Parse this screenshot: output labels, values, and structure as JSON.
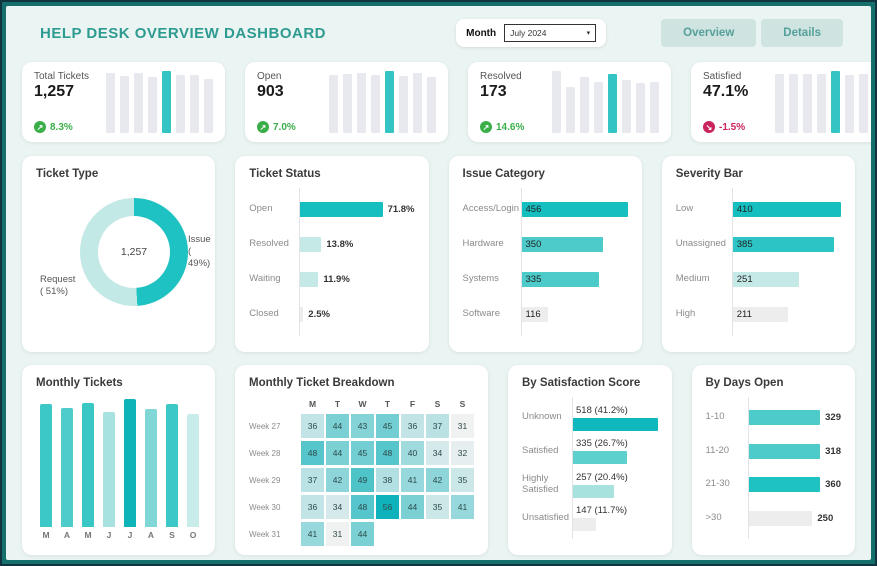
{
  "header": {
    "title": "HELP DESK OVERVIEW DASHBOARD",
    "month_label": "Month",
    "month_value": "July 2024",
    "buttons": {
      "overview": "Overview",
      "details": "Details"
    }
  },
  "colors": {
    "accent_dark": "#16bfbf",
    "accent_mid": "#4ccbca",
    "accent_light": "#c5e9e7",
    "neutral_bar": "#ededed",
    "positive": "#3aae49",
    "negative": "#c9245d",
    "title_teal": "#2d9b90"
  },
  "kpis": [
    {
      "label": "Total Tickets",
      "value": "1,257",
      "delta": "8.3%",
      "direction": "up",
      "spark": [
        0.96,
        0.92,
        0.97,
        0.91,
        1.0,
        0.93,
        0.94,
        0.87
      ],
      "highlight_index": 4
    },
    {
      "label": "Open",
      "value": "903",
      "delta": "7.0%",
      "direction": "up",
      "spark": [
        0.93,
        0.95,
        0.97,
        0.94,
        1.0,
        0.92,
        0.96,
        0.9
      ],
      "highlight_index": 4
    },
    {
      "label": "Resolved",
      "value": "173",
      "delta": "14.6%",
      "direction": "up",
      "spark": [
        1.0,
        0.75,
        0.9,
        0.82,
        0.95,
        0.85,
        0.8,
        0.83
      ],
      "highlight_index": 4
    },
    {
      "label": "Satisfied",
      "value": "47.1%",
      "delta": "-1.5%",
      "direction": "down",
      "spark": [
        0.95,
        0.95,
        0.95,
        0.95,
        1.0,
        0.93,
        0.95,
        0.92
      ],
      "highlight_index": 4
    }
  ],
  "chart_data": [
    {
      "id": "ticket-type",
      "type": "pie",
      "title": "Ticket Type",
      "center_label": "1,257",
      "slices": [
        {
          "label": "Issue",
          "pct": 49,
          "pct_label": "( 49%)",
          "color": "#1fc2c2"
        },
        {
          "label": "Request",
          "pct": 51,
          "pct_label": "( 51%)",
          "color": "#c3e9e6"
        }
      ]
    },
    {
      "id": "ticket-status",
      "type": "bar",
      "title": "Ticket Status",
      "value_position": "outside",
      "categories": [
        "Open",
        "Resolved",
        "Waiting",
        "Closed"
      ],
      "values": [
        71.8,
        13.8,
        11.9,
        2.5
      ],
      "value_labels": [
        "71.8%",
        "13.8%",
        "11.9%",
        "2.5%"
      ],
      "colors": [
        "#16bfbf",
        "#c5e9e7",
        "#c5e9e7",
        "#ededed"
      ]
    },
    {
      "id": "issue-category",
      "type": "bar",
      "title": "Issue Category",
      "value_position": "inside",
      "categories": [
        "Access/Login",
        "Hardware",
        "Systems",
        "Software"
      ],
      "values": [
        456,
        350,
        335,
        116
      ],
      "colors": [
        "#16bfbf",
        "#4ccbca",
        "#4ccbca",
        "#ededed"
      ]
    },
    {
      "id": "severity-bar",
      "type": "bar",
      "title": "Severity Bar",
      "value_position": "inside",
      "categories": [
        "Low",
        "Unassigned",
        "Medium",
        "High"
      ],
      "values": [
        410,
        385,
        251,
        211
      ],
      "colors": [
        "#16bfbf",
        "#2cc4c4",
        "#c5e9e7",
        "#ededed"
      ]
    },
    {
      "id": "monthly-tickets",
      "type": "bar",
      "orientation": "vertical",
      "title": "Monthly Tickets",
      "categories": [
        "M",
        "A",
        "M",
        "J",
        "J",
        "A",
        "S",
        "O"
      ],
      "relative_heights_pct": [
        96,
        93,
        97,
        90,
        100,
        92,
        96,
        88
      ],
      "colors": [
        "#3cc8c6",
        "#4ecccb",
        "#38c7c5",
        "#a7e2e0",
        "#0fb4b8",
        "#7fd8d6",
        "#3cc8c6",
        "#c8ecea"
      ]
    },
    {
      "id": "breakdown",
      "type": "heatmap",
      "title": "Monthly Ticket Breakdown",
      "columns": [
        "M",
        "T",
        "W",
        "T",
        "F",
        "S",
        "S"
      ],
      "rows": [
        {
          "label": "Week 27",
          "values": [
            36,
            44,
            43,
            45,
            36,
            37,
            31
          ]
        },
        {
          "label": "Week 28",
          "values": [
            48,
            44,
            45,
            48,
            40,
            34,
            32
          ]
        },
        {
          "label": "Week 29",
          "values": [
            37,
            42,
            49,
            38,
            41,
            42,
            35
          ]
        },
        {
          "label": "Week 30",
          "values": [
            36,
            34,
            48,
            56,
            44,
            35,
            41
          ]
        },
        {
          "label": "Week 31",
          "values": [
            41,
            31,
            44
          ]
        }
      ],
      "scale": {
        "min": 31,
        "max": 56,
        "min_color": "#f0f1f1",
        "max_color": "#0fb2ba"
      }
    },
    {
      "id": "satisfaction",
      "type": "bar",
      "title": "By Satisfaction Score",
      "value_position": "above",
      "categories": [
        "Unknown",
        "Satisfied",
        "Highly Satisfied",
        "Unsatisfied"
      ],
      "values": [
        518,
        335,
        257,
        147
      ],
      "value_labels": [
        "518 (41.2%)",
        "335 (26.7%)",
        "257 (20.4%)",
        "147 (11.7%)"
      ],
      "colors": [
        "#0fb8bc",
        "#5bd0cd",
        "#a8e2de",
        "#ededed"
      ]
    },
    {
      "id": "days-open",
      "type": "bar",
      "title": "By Days Open",
      "value_position": "outside",
      "categories": [
        "1-10",
        "11-20",
        "21-30",
        ">30"
      ],
      "values": [
        329,
        318,
        360,
        250
      ],
      "colors": [
        "#4ccbca",
        "#4ccbca",
        "#1fc2c2",
        "#ededed"
      ]
    }
  ]
}
